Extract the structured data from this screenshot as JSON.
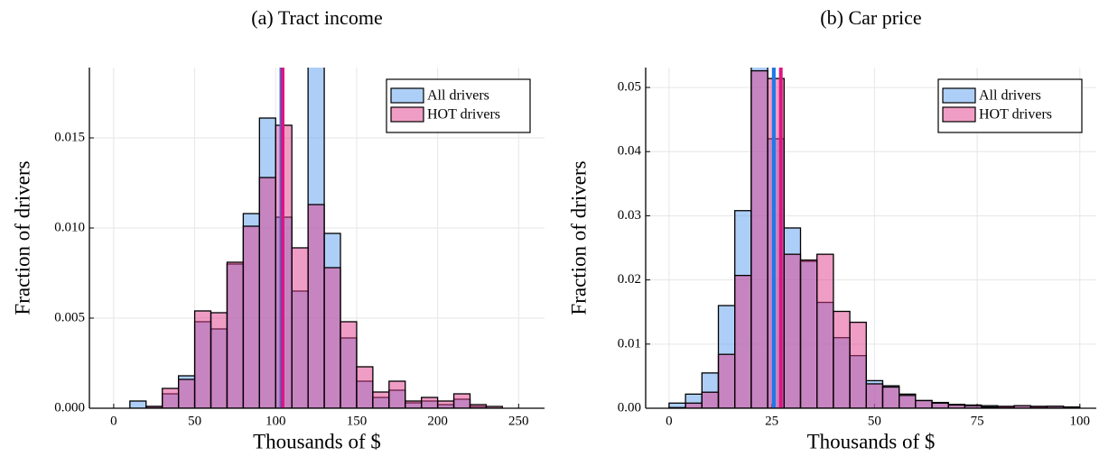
{
  "chart_data": [
    {
      "type": "histogram",
      "title": "(a) Tract income",
      "xlabel": "Thousands of $",
      "ylabel": "Fraction of drivers",
      "bins": [
        10,
        20,
        30,
        40,
        50,
        60,
        70,
        80,
        90,
        100,
        110,
        120,
        130,
        140,
        150,
        160,
        170,
        180,
        190,
        200,
        210,
        220,
        230,
        240
      ],
      "series": [
        {
          "name": "All drivers",
          "color": "#5c9ff0",
          "values": [
            0.0004,
            0.0001,
            0.0008,
            0.0018,
            0.0048,
            0.0044,
            0.008,
            0.0108,
            0.0161,
            0.0106,
            0.0065,
            0.019,
            0.0097,
            0.0039,
            0.0015,
            0.0006,
            0.001,
            0.0003,
            0.0004,
            0.0002,
            0.0005,
            0.0001,
            0.0
          ]
        },
        {
          "name": "HOT drivers",
          "color": "#e03c8c",
          "values": [
            0.0,
            0.0001,
            0.0011,
            0.0016,
            0.0054,
            0.0053,
            0.0081,
            0.0101,
            0.0128,
            0.0157,
            0.0089,
            0.0113,
            0.0078,
            0.0048,
            0.0023,
            0.0009,
            0.0015,
            0.0004,
            0.0006,
            0.0004,
            0.0008,
            0.0002,
            0.0001
          ]
        }
      ],
      "vlines": [
        {
          "color": "#1f78e8",
          "x": 103.5
        },
        {
          "color": "#e0147f",
          "x": 104.3
        }
      ],
      "alpha": 0.5,
      "xlim": [
        -15,
        266
      ],
      "xticks": [
        0,
        50,
        100,
        150,
        200,
        250
      ],
      "ylim": [
        0,
        0.0189
      ],
      "yticks": [
        {
          "value": 0,
          "label": "0.000"
        },
        {
          "value": 0.005,
          "label": "0.005"
        },
        {
          "value": 0.01,
          "label": "0.010"
        },
        {
          "value": 0.015,
          "label": "0.015"
        }
      ],
      "grid": true,
      "legend": "top-right"
    },
    {
      "type": "histogram",
      "title": "(b) Car price",
      "xlabel": "Thousands of $",
      "ylabel": "Fraction of drivers",
      "bins": [
        0,
        4,
        8,
        12,
        16,
        20,
        24,
        28,
        32,
        36,
        40,
        44,
        48,
        52,
        56,
        60,
        64,
        68,
        72,
        76,
        80,
        84,
        88,
        92,
        96,
        100
      ],
      "series": [
        {
          "name": "All drivers",
          "color": "#5c9ff0",
          "values": [
            0.0008,
            0.0022,
            0.0055,
            0.016,
            0.0308,
            0.0533,
            0.042,
            0.0281,
            0.0229,
            0.0165,
            0.011,
            0.0082,
            0.0043,
            0.0035,
            0.0022,
            0.0012,
            0.0009,
            0.0006,
            0.0005,
            0.0004,
            0.0002,
            0.0004,
            0.0002,
            0.0003,
            0.0002
          ]
        },
        {
          "name": "HOT drivers",
          "color": "#e03c8c",
          "values": [
            0.0001,
            0.0008,
            0.0025,
            0.0084,
            0.0207,
            0.0526,
            0.0514,
            0.024,
            0.0231,
            0.024,
            0.0151,
            0.0134,
            0.0038,
            0.0033,
            0.002,
            0.0012,
            0.0008,
            0.0005,
            0.0004,
            0.0002,
            0.0003,
            0.0004,
            0.0003,
            0.0003,
            0.0001
          ]
        }
      ],
      "vlines": [
        {
          "color": "#1f78e8",
          "x": 25.5
        },
        {
          "color": "#e0147f",
          "x": 27.2
        }
      ],
      "alpha": 0.5,
      "xlim": [
        -5.7,
        104
      ],
      "xticks": [
        0,
        25,
        50,
        75,
        100
      ],
      "ylim": [
        0,
        0.0531
      ],
      "yticks": [
        {
          "value": 0,
          "label": "0.00"
        },
        {
          "value": 0.01,
          "label": "0.01"
        },
        {
          "value": 0.02,
          "label": "0.02"
        },
        {
          "value": 0.03,
          "label": "0.03"
        },
        {
          "value": 0.04,
          "label": "0.04"
        },
        {
          "value": 0.05,
          "label": "0.05"
        }
      ],
      "grid": true,
      "legend": "top-right"
    }
  ]
}
